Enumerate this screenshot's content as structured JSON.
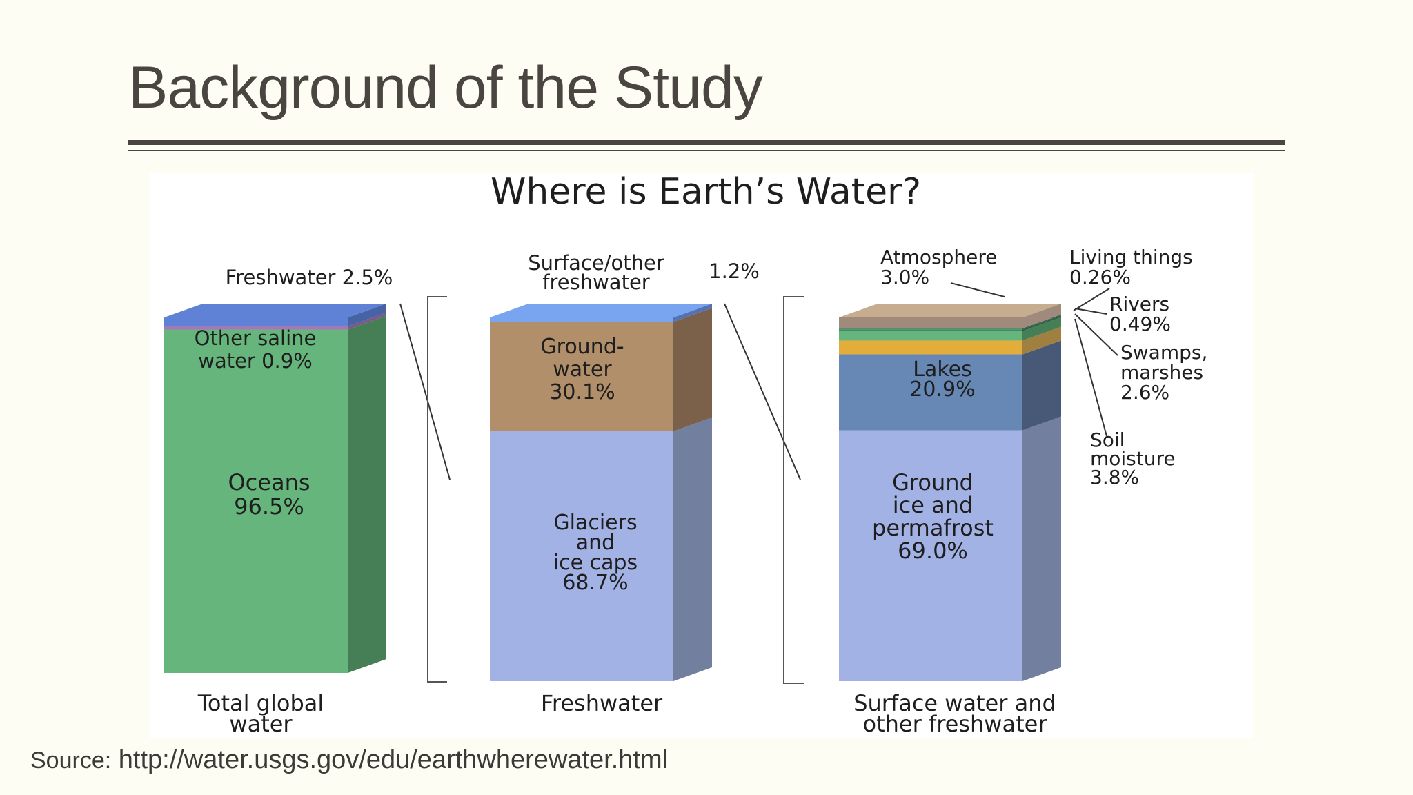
{
  "slide": {
    "title": "Background of the Study",
    "source_label": "Source:",
    "source_url": "http://water.usgs.gov/edu/earthwherewater.html"
  },
  "chart_data": {
    "type": "bar",
    "title": "Where is Earth’s Water?",
    "columns": [
      {
        "caption_lines": [
          "Total global",
          "water"
        ],
        "segments": [
          {
            "name": "Oceans",
            "value": 96.5,
            "label_lines": [
              "Oceans",
              "96.5%"
            ],
            "color": "#66b57c",
            "side_color": "#467f55"
          },
          {
            "name": "Other saline water",
            "value": 0.9,
            "label_lines": [
              "Other saline",
              "water 0.9%"
            ],
            "color": "#a378b8",
            "side_color": "#7a5a8a"
          },
          {
            "name": "Freshwater",
            "value": 2.5,
            "label_lines": [
              "Freshwater 2.5%"
            ],
            "color": "#5f82d6",
            "side_color": "#4763a3"
          }
        ]
      },
      {
        "caption_lines": [
          "Freshwater"
        ],
        "segments": [
          {
            "name": "Glaciers and ice caps",
            "value": 68.7,
            "label_lines": [
              "Glaciers",
              "and",
              "ice caps",
              "68.7%"
            ],
            "color": "#a3b2e5",
            "side_color": "#727f9f"
          },
          {
            "name": "Groundwater",
            "value": 30.1,
            "label_lines": [
              "Ground-",
              "water",
              "30.1%"
            ],
            "color": "#b08f6a",
            "side_color": "#7b6149"
          },
          {
            "name": "Surface/other freshwater",
            "value": 1.2,
            "label_lines": [
              "Surface/other",
              "freshwater"
            ],
            "value_label": "1.2%",
            "color": "#79a4ef",
            "side_color": "#5373b5"
          }
        ]
      },
      {
        "caption_lines": [
          "Surface water and",
          "other freshwater"
        ],
        "segments": [
          {
            "name": "Ground ice and permafrost",
            "value": 69.0,
            "label_lines": [
              "Ground",
              "ice and",
              "permafrost",
              "69.0%"
            ],
            "color": "#a3b2e5",
            "side_color": "#727f9f"
          },
          {
            "name": "Lakes",
            "value": 20.9,
            "label_lines": [
              "Lakes",
              "20.9%"
            ],
            "color": "#6787b4",
            "side_color": "#485877"
          },
          {
            "name": "Soil moisture",
            "value": 3.8,
            "label_lines": [
              "Soil",
              "moisture",
              "3.8%"
            ],
            "color": "#e3ad3c",
            "side_color": "#9f8041"
          },
          {
            "name": "Swamps, marshes",
            "value": 2.6,
            "label_lines": [
              "Swamps,",
              "marshes",
              "2.6%"
            ],
            "color": "#66b57c",
            "side_color": "#467f55"
          },
          {
            "name": "Rivers",
            "value": 0.49,
            "label_lines": [
              "Rivers",
              "0.49%"
            ],
            "color": "#3e8a66",
            "side_color": "#2c604a"
          },
          {
            "name": "Living things",
            "value": 0.26,
            "label_lines": [
              "Living things",
              "0.26%"
            ],
            "color": "#5c8a6c",
            "side_color": "#3e5e4a"
          },
          {
            "name": "Atmosphere",
            "value": 3.0,
            "label_lines": [
              "Atmosphere",
              "3.0%"
            ],
            "color": "#a08a7c",
            "side_color": "#a08a7c"
          }
        ]
      }
    ]
  }
}
